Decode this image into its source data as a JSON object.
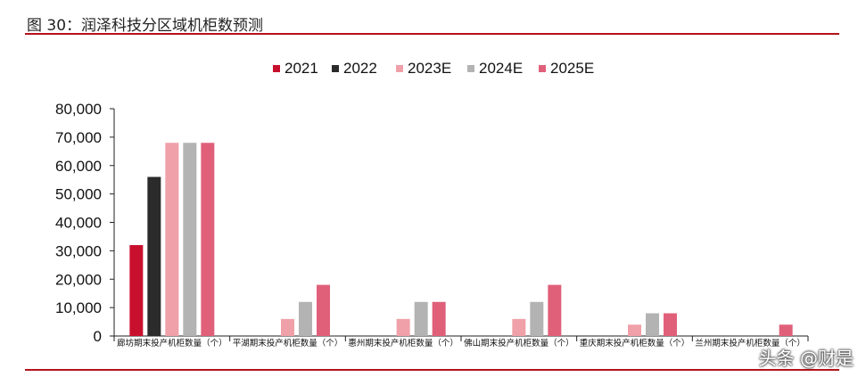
{
  "figure_title": "图 30：润泽科技分区域机柜数预测",
  "watermark": "头条 @财是",
  "colors": {
    "accent_rule": "#b5121b",
    "axis": "#222222"
  },
  "chart_data": {
    "type": "bar",
    "categories": [
      "廊坊期末投产机柜数量（个）",
      "平湖期末投产机柜数量（个）",
      "惠州期末投产机柜数量（个）",
      "佛山期末投产机柜数量（个）",
      "重庆期末投产机柜数量（个）",
      "兰州期末投产机柜数量（个）"
    ],
    "series": [
      {
        "name": "2021",
        "color": "#c8102e",
        "values": [
          32000,
          0,
          0,
          0,
          0,
          0
        ]
      },
      {
        "name": "2022",
        "color": "#2b2b2b",
        "values": [
          56000,
          0,
          0,
          0,
          0,
          0
        ]
      },
      {
        "name": "2023E",
        "color": "#f0a0a8",
        "values": [
          68000,
          6000,
          6000,
          6000,
          4000,
          0
        ]
      },
      {
        "name": "2024E",
        "color": "#b3b3b3",
        "values": [
          68000,
          12000,
          12000,
          12000,
          8000,
          0
        ]
      },
      {
        "name": "2025E",
        "color": "#e0607a",
        "values": [
          68000,
          18000,
          12000,
          18000,
          8000,
          4000
        ]
      }
    ],
    "ylim": [
      0,
      80000
    ],
    "yticks": [
      "0",
      "10,000",
      "20,000",
      "30,000",
      "40,000",
      "50,000",
      "60,000",
      "70,000",
      "80,000"
    ],
    "legend_position": "top-center",
    "grid": false
  }
}
